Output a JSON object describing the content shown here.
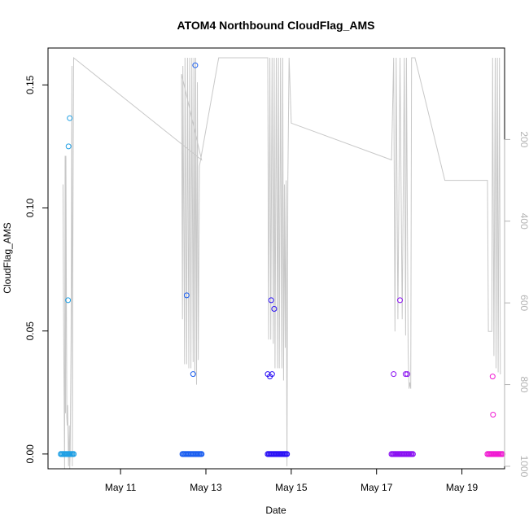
{
  "chart_data": {
    "type": "scatter",
    "title": "ATOM4 Northbound CloudFlag_AMS",
    "xlabel": "Date",
    "ylabel": "CloudFlag_AMS",
    "x_unit": "days (May 2016)",
    "xlim": [
      "May 9.3",
      "May 20.0"
    ],
    "ylim": [
      -0.006,
      0.165
    ],
    "x_ticks": [
      {
        "label": "May 11",
        "value": 11
      },
      {
        "label": "May 13",
        "value": 13
      },
      {
        "label": "May 15",
        "value": 15
      },
      {
        "label": "May 17",
        "value": 17
      },
      {
        "label": "May 19",
        "value": 19
      }
    ],
    "y_ticks": [
      {
        "label": "0.00",
        "value": 0.0
      },
      {
        "label": "0.05",
        "value": 0.05
      },
      {
        "label": "0.10",
        "value": 0.1
      },
      {
        "label": "0.15",
        "value": 0.15
      }
    ],
    "right_axis": {
      "label": "",
      "color": "#b3b3b3",
      "reversed": true,
      "range": [
        0,
        1030
      ],
      "ticks": [
        {
          "label": "200",
          "value": 200
        },
        {
          "label": "400",
          "value": 400
        },
        {
          "label": "600",
          "value": 600
        },
        {
          "label": "800",
          "value": 800
        },
        {
          "label": "1000",
          "value": 1000
        }
      ]
    },
    "flights": [
      {
        "name": "flight-1",
        "color": "#1e9fe4",
        "zero_range": [
          9.6,
          9.9
        ],
        "points": [
          [
            9.77,
            0.0625
          ],
          [
            9.78,
            0.125
          ],
          [
            9.81,
            0.1365
          ]
        ]
      },
      {
        "name": "flight-2",
        "color": "#1a5ef0",
        "zero_range": [
          12.45,
          12.9
        ],
        "points": [
          [
            12.55,
            0.0645
          ],
          [
            12.7,
            0.0325
          ],
          [
            12.75,
            0.158
          ]
        ]
      },
      {
        "name": "flight-3",
        "color": "#2a10f5",
        "zero_range": [
          14.45,
          14.9
        ],
        "points": [
          [
            14.45,
            0.0325
          ],
          [
            14.5,
            0.0315
          ],
          [
            14.55,
            0.0325
          ],
          [
            14.53,
            0.0625
          ],
          [
            14.6,
            0.059
          ]
        ]
      },
      {
        "name": "flight-4",
        "color": "#8a10f2",
        "zero_range": [
          17.35,
          17.85
        ],
        "points": [
          [
            17.4,
            0.0325
          ],
          [
            17.55,
            0.0625
          ],
          [
            17.68,
            0.0325
          ],
          [
            17.72,
            0.0325
          ]
        ]
      },
      {
        "name": "flight-5",
        "color": "#f01ad2",
        "zero_range": [
          19.6,
          19.95
        ],
        "points": [
          [
            19.72,
            0.0315
          ],
          [
            19.73,
            0.016
          ]
        ]
      }
    ],
    "pressure_trace": {
      "color": "#c8c8c8",
      "axis": "right",
      "points": [
        [
          9.65,
          310
        ],
        [
          9.66,
          550
        ],
        [
          9.67,
          720
        ],
        [
          9.69,
          1010
        ],
        [
          9.7,
          240
        ],
        [
          9.71,
          870
        ],
        [
          9.72,
          240
        ],
        [
          9.74,
          880
        ],
        [
          9.75,
          900
        ],
        [
          9.76,
          850
        ],
        [
          9.78,
          1000
        ],
        [
          9.8,
          900
        ],
        [
          9.81,
          1005
        ],
        [
          9.82,
          960
        ],
        [
          9.84,
          690
        ],
        [
          9.86,
          20
        ],
        [
          9.87,
          1000
        ],
        [
          9.88,
          530
        ],
        [
          9.9,
          0
        ],
        [
          12.9,
          250
        ],
        [
          12.43,
          40
        ],
        [
          12.45,
          640
        ],
        [
          12.46,
          20
        ],
        [
          12.5,
          750
        ],
        [
          12.51,
          0
        ],
        [
          12.55,
          750
        ],
        [
          12.57,
          0
        ],
        [
          12.6,
          760
        ],
        [
          12.62,
          0
        ],
        [
          12.65,
          760
        ],
        [
          12.67,
          0
        ],
        [
          12.7,
          745
        ],
        [
          12.72,
          0
        ],
        [
          12.74,
          780
        ],
        [
          12.76,
          0
        ],
        [
          12.78,
          800
        ],
        [
          12.8,
          60
        ],
        [
          12.82,
          740
        ],
        [
          12.85,
          265
        ],
        [
          13.3,
          0
        ],
        [
          14.45,
          0
        ],
        [
          14.47,
          690
        ],
        [
          14.5,
          0
        ],
        [
          14.52,
          690
        ],
        [
          14.55,
          0
        ],
        [
          14.58,
          700
        ],
        [
          14.6,
          0
        ],
        [
          14.62,
          760
        ],
        [
          14.65,
          0
        ],
        [
          14.68,
          760
        ],
        [
          14.7,
          0
        ],
        [
          14.72,
          760
        ],
        [
          14.75,
          0
        ],
        [
          14.78,
          760
        ],
        [
          14.8,
          0
        ],
        [
          14.82,
          790
        ],
        [
          14.84,
          310
        ],
        [
          14.86,
          710
        ],
        [
          14.88,
          300
        ],
        [
          14.9,
          1000
        ],
        [
          14.92,
          300
        ],
        [
          14.95,
          0
        ],
        [
          15.0,
          160
        ],
        [
          17.35,
          250
        ],
        [
          17.4,
          0
        ],
        [
          17.43,
          670
        ],
        [
          17.46,
          0
        ],
        [
          17.5,
          640
        ],
        [
          17.55,
          0
        ],
        [
          17.6,
          640
        ],
        [
          17.65,
          0
        ],
        [
          17.68,
          680
        ],
        [
          17.7,
          0
        ],
        [
          17.74,
          720
        ],
        [
          17.76,
          810
        ],
        [
          17.78,
          795
        ],
        [
          17.8,
          810
        ],
        [
          17.82,
          0
        ],
        [
          17.9,
          0
        ],
        [
          18.6,
          300
        ],
        [
          19.6,
          300
        ],
        [
          19.62,
          670
        ],
        [
          19.7,
          670
        ],
        [
          19.72,
          0
        ],
        [
          19.75,
          730
        ],
        [
          19.78,
          0
        ],
        [
          19.8,
          760
        ],
        [
          19.83,
          0
        ],
        [
          19.85,
          770
        ],
        [
          19.88,
          0
        ],
        [
          19.9,
          775
        ]
      ]
    },
    "grid": false,
    "legend": "none"
  }
}
